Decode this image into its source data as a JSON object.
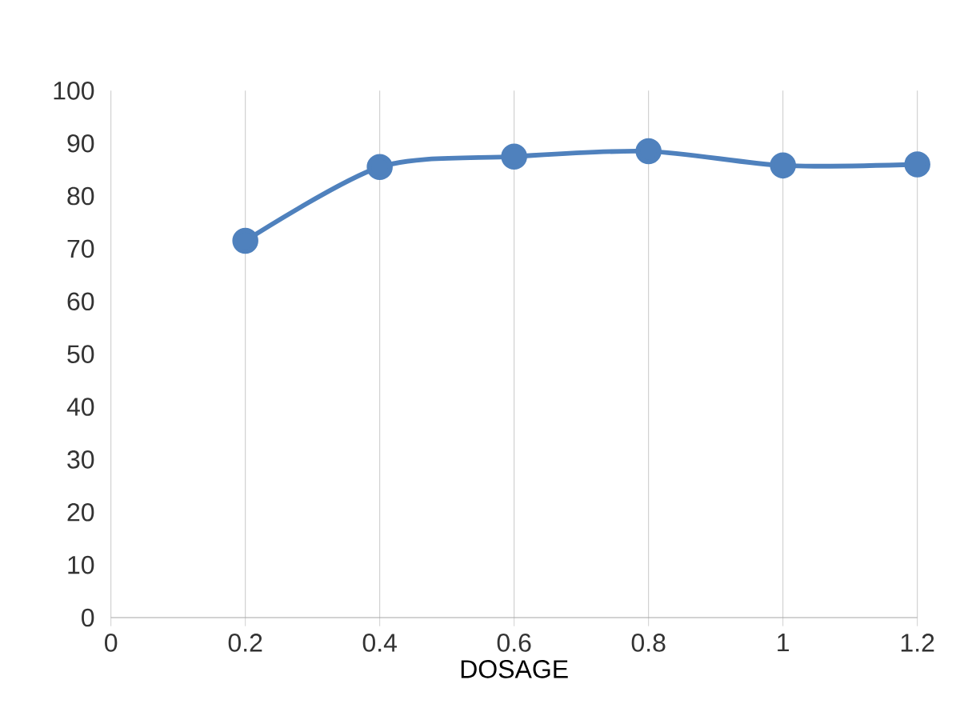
{
  "chart_data": {
    "type": "line",
    "xlabel": "DOSAGE",
    "x": [
      0.2,
      0.4,
      0.6,
      0.8,
      1,
      1.2
    ],
    "series": [
      {
        "color": "#4f81bd",
        "values": [
          71.5,
          85.5,
          87.5,
          88.5,
          85.8,
          86
        ]
      }
    ],
    "xlim": [
      0,
      1.2
    ],
    "xticks": [
      0,
      0.2,
      0.4,
      0.6,
      0.8,
      1,
      1.2
    ],
    "ylim": [
      0,
      100
    ],
    "yticks": [
      0,
      10,
      20,
      30,
      40,
      50,
      60,
      70,
      80,
      90,
      100
    ],
    "grid": "x",
    "marker": "circle",
    "line_style": "solid"
  }
}
